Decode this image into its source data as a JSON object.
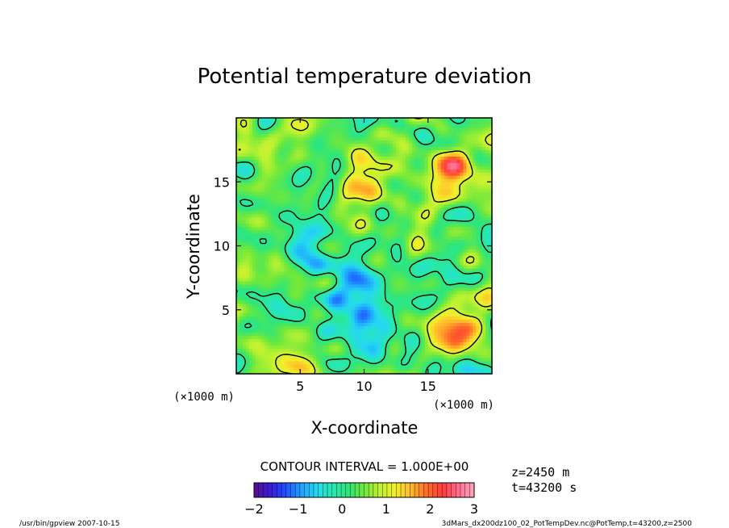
{
  "chart_data": {
    "type": "heatmap",
    "title": "Potential temperature deviation",
    "xlabel": "X-coordinate",
    "ylabel": "Y-coordinate",
    "x_unit_label": "(×1000 m)",
    "y_unit_label": "(×1000 m)",
    "xlim": [
      0,
      20
    ],
    "ylim": [
      0,
      20
    ],
    "x_ticks": [
      5,
      10,
      15
    ],
    "y_ticks": [
      5,
      10,
      15
    ],
    "x_tick_labels": [
      "5",
      "10",
      "15"
    ],
    "y_tick_labels": [
      "5",
      "10",
      "15"
    ],
    "contour_interval_text": "CONTOUR INTERVAL = 1.000E+00",
    "contour_levels": [
      0,
      1
    ],
    "colorbar": {
      "min": -2,
      "max": 3,
      "tick_values": [
        -2,
        -1,
        0,
        1,
        2,
        3
      ],
      "tick_labels": [
        "−2",
        "−1",
        "0",
        "1",
        "2",
        "3"
      ],
      "colors": [
        "#5a0e8c",
        "#3b1bd6",
        "#1f4fff",
        "#1fa2ff",
        "#25d8ef",
        "#27e8b4",
        "#2ee57a",
        "#6fe83c",
        "#bff230",
        "#f4ee2b",
        "#ffb62a",
        "#ff6b27",
        "#ff3b3b",
        "#ff6f8f",
        "#ffa6c0"
      ]
    },
    "grid": false,
    "field_summary": {
      "typical_range": [
        -1,
        2
      ],
      "warm_regions": [
        {
          "x": 16.5,
          "y": 16.0,
          "peak": 2.0
        },
        {
          "x": 17.5,
          "y": 3.5,
          "peak": 2.0
        },
        {
          "x": 9.5,
          "y": 14.5,
          "peak": 1.5
        },
        {
          "x": 3.5,
          "y": 1.5,
          "peak": 1.0
        }
      ],
      "cool_regions": [
        {
          "x": 6.0,
          "y": 11.0,
          "trough": -0.7
        },
        {
          "x": 9.5,
          "y": 6.0,
          "trough": -0.7
        },
        {
          "x": 10.0,
          "y": 3.0,
          "trough": -0.6
        }
      ]
    }
  },
  "annotations": {
    "z_label": "z=2450  m",
    "t_label": "t=43200  s"
  },
  "footer": {
    "left": "/usr/bin/gpview   2007-10-15",
    "right": "3dMars_dx200dz100_02_PotTempDev.nc@PotTemp,t=43200,z=2500"
  }
}
